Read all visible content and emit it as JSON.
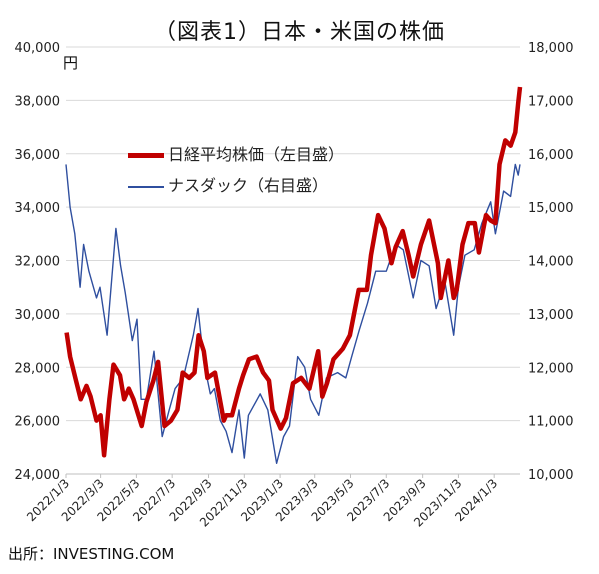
{
  "title": "（図表1）日本・米国の株価",
  "unit_left": "円",
  "source": "出所：INVESTING.COM",
  "chart_data": {
    "type": "line",
    "legend": "top-left",
    "grid": true,
    "left_axis": {
      "min": 24000,
      "max": 40000,
      "ticks": [
        "24,000",
        "26,000",
        "28,000",
        "30,000",
        "32,000",
        "34,000",
        "36,000",
        "38,000",
        "40,000"
      ]
    },
    "right_axis": {
      "min": 10000,
      "max": 18000,
      "ticks": [
        "10,000",
        "11,000",
        "12,000",
        "13,000",
        "14,000",
        "15,000",
        "16,000",
        "17,000",
        "18,000"
      ]
    },
    "x_ticks": [
      "2022/1/3",
      "2022/3/3",
      "2022/5/3",
      "2022/7/3",
      "2022/9/3",
      "2022/11/3",
      "2023/1/3",
      "2023/3/3",
      "2023/5/3",
      "2023/7/3",
      "2023/9/3",
      "2023/11/3",
      "2024/1/3"
    ],
    "x_range": [
      "2022/1/3",
      "2024/2/16"
    ],
    "series": [
      {
        "name": "日経平均株価（左目盛）",
        "axis": "left",
        "color": "#c00000",
        "points": [
          [
            "2022/1/4",
            29300
          ],
          [
            "2022/1/10",
            28400
          ],
          [
            "2022/1/20",
            27500
          ],
          [
            "2022/1/28",
            26800
          ],
          [
            "2022/2/7",
            27300
          ],
          [
            "2022/2/14",
            26900
          ],
          [
            "2022/2/24",
            26000
          ],
          [
            "2022/3/3",
            26200
          ],
          [
            "2022/3/9",
            24700
          ],
          [
            "2022/3/18",
            26800
          ],
          [
            "2022/3/25",
            28100
          ],
          [
            "2022/4/5",
            27700
          ],
          [
            "2022/4/12",
            26800
          ],
          [
            "2022/4/20",
            27200
          ],
          [
            "2022/4/28",
            26800
          ],
          [
            "2022/5/12",
            25800
          ],
          [
            "2022/5/20",
            26700
          ],
          [
            "2022/6/1",
            27500
          ],
          [
            "2022/6/9",
            28200
          ],
          [
            "2022/6/20",
            25800
          ],
          [
            "2022/7/1",
            26000
          ],
          [
            "2022/7/12",
            26400
          ],
          [
            "2022/7/21",
            27800
          ],
          [
            "2022/8/1",
            27600
          ],
          [
            "2022/8/10",
            27800
          ],
          [
            "2022/8/17",
            29200
          ],
          [
            "2022/8/26",
            28600
          ],
          [
            "2022/9/1",
            27600
          ],
          [
            "2022/9/14",
            27800
          ],
          [
            "2022/9/29",
            26000
          ],
          [
            "2022/10/3",
            26200
          ],
          [
            "2022/10/13",
            26200
          ],
          [
            "2022/10/25",
            27200
          ],
          [
            "2022/11/1",
            27700
          ],
          [
            "2022/11/11",
            28300
          ],
          [
            "2022/11/24",
            28400
          ],
          [
            "2022/12/5",
            27800
          ],
          [
            "2022/12/15",
            27500
          ],
          [
            "2022/12/21",
            26400
          ],
          [
            "2023/1/4",
            25700
          ],
          [
            "2023/1/13",
            26100
          ],
          [
            "2023/1/25",
            27400
          ],
          [
            "2023/2/8",
            27600
          ],
          [
            "2023/2/22",
            27200
          ],
          [
            "2023/3/9",
            28600
          ],
          [
            "2023/3/16",
            26900
          ],
          [
            "2023/3/24",
            27400
          ],
          [
            "2023/4/4",
            28300
          ],
          [
            "2023/4/20",
            28700
          ],
          [
            "2023/5/2",
            29200
          ],
          [
            "2023/5/17",
            30900
          ],
          [
            "2023/5/31",
            30900
          ],
          [
            "2023/6/7",
            32200
          ],
          [
            "2023/6/19",
            33700
          ],
          [
            "2023/6/30",
            33200
          ],
          [
            "2023/7/12",
            31900
          ],
          [
            "2023/7/19",
            32500
          ],
          [
            "2023/7/31",
            33100
          ],
          [
            "2023/8/10",
            32200
          ],
          [
            "2023/8/18",
            31400
          ],
          [
            "2023/8/31",
            32600
          ],
          [
            "2023/9/14",
            33500
          ],
          [
            "2023/9/29",
            31900
          ],
          [
            "2023/10/4",
            30600
          ],
          [
            "2023/10/17",
            32000
          ],
          [
            "2023/10/26",
            30600
          ],
          [
            "2023/10/31",
            30900
          ],
          [
            "2023/11/10",
            32600
          ],
          [
            "2023/11/20",
            33400
          ],
          [
            "2023/12/1",
            33400
          ],
          [
            "2023/12/8",
            32300
          ],
          [
            "2023/12/20",
            33700
          ],
          [
            "2023/12/28",
            33500
          ],
          [
            "2024/1/5",
            33400
          ],
          [
            "2024/1/12",
            35600
          ],
          [
            "2024/1/22",
            36500
          ],
          [
            "2024/1/31",
            36300
          ],
          [
            "2024/2/8",
            36800
          ],
          [
            "2024/2/13",
            37900
          ],
          [
            "2024/2/16",
            38500
          ]
        ]
      },
      {
        "name": "ナスダック（右目盛）",
        "axis": "right",
        "color": "#2f4f9f",
        "points": [
          [
            "2022/1/3",
            15800
          ],
          [
            "2022/1/10",
            15000
          ],
          [
            "2022/1/18",
            14500
          ],
          [
            "2022/1/27",
            13500
          ],
          [
            "2022/2/2",
            14300
          ],
          [
            "2022/2/11",
            13800
          ],
          [
            "2022/2/24",
            13300
          ],
          [
            "2022/3/2",
            13500
          ],
          [
            "2022/3/14",
            12600
          ],
          [
            "2022/3/29",
            14600
          ],
          [
            "2022/4/6",
            13900
          ],
          [
            "2022/4/14",
            13400
          ],
          [
            "2022/4/26",
            12500
          ],
          [
            "2022/5/4",
            12900
          ],
          [
            "2022/5/11",
            11400
          ],
          [
            "2022/5/20",
            11400
          ],
          [
            "2022/6/2",
            12300
          ],
          [
            "2022/6/16",
            10700
          ],
          [
            "2022/6/28",
            11200
          ],
          [
            "2022/7/8",
            11600
          ],
          [
            "2022/7/22",
            11800
          ],
          [
            "2022/8/8",
            12600
          ],
          [
            "2022/8/16",
            13100
          ],
          [
            "2022/8/26",
            12100
          ],
          [
            "2022/9/6",
            11500
          ],
          [
            "2022/9/13",
            11600
          ],
          [
            "2022/9/23",
            11000
          ],
          [
            "2022/10/3",
            10800
          ],
          [
            "2022/10/13",
            10400
          ],
          [
            "2022/10/25",
            11200
          ],
          [
            "2022/11/3",
            10300
          ],
          [
            "2022/11/10",
            11100
          ],
          [
            "2022/11/30",
            11500
          ],
          [
            "2022/12/13",
            11200
          ],
          [
            "2022/12/28",
            10200
          ],
          [
            "2023/1/9",
            10700
          ],
          [
            "2023/1/19",
            10900
          ],
          [
            "2023/2/2",
            12200
          ],
          [
            "2023/2/14",
            12000
          ],
          [
            "2023/2/24",
            11400
          ],
          [
            "2023/3/10",
            11100
          ],
          [
            "2023/3/23",
            11800
          ],
          [
            "2023/4/11",
            11900
          ],
          [
            "2023/4/25",
            11800
          ],
          [
            "2023/5/5",
            12200
          ],
          [
            "2023/5/18",
            12700
          ],
          [
            "2023/6/1",
            13200
          ],
          [
            "2023/6/15",
            13800
          ],
          [
            "2023/7/3",
            13800
          ],
          [
            "2023/7/19",
            14300
          ],
          [
            "2023/8/1",
            14200
          ],
          [
            "2023/8/18",
            13300
          ],
          [
            "2023/8/31",
            14000
          ],
          [
            "2023/9/14",
            13900
          ],
          [
            "2023/9/26",
            13100
          ],
          [
            "2023/10/11",
            13600
          ],
          [
            "2023/10/26",
            12600
          ],
          [
            "2023/11/3",
            13500
          ],
          [
            "2023/11/14",
            14100
          ],
          [
            "2023/11/30",
            14200
          ],
          [
            "2023/12/13",
            14700
          ],
          [
            "2023/12/28",
            15100
          ],
          [
            "2024/1/5",
            14500
          ],
          [
            "2024/1/19",
            15300
          ],
          [
            "2024/1/31",
            15200
          ],
          [
            "2024/2/8",
            15800
          ],
          [
            "2024/2/13",
            15600
          ],
          [
            "2024/2/16",
            15800
          ]
        ]
      }
    ]
  }
}
